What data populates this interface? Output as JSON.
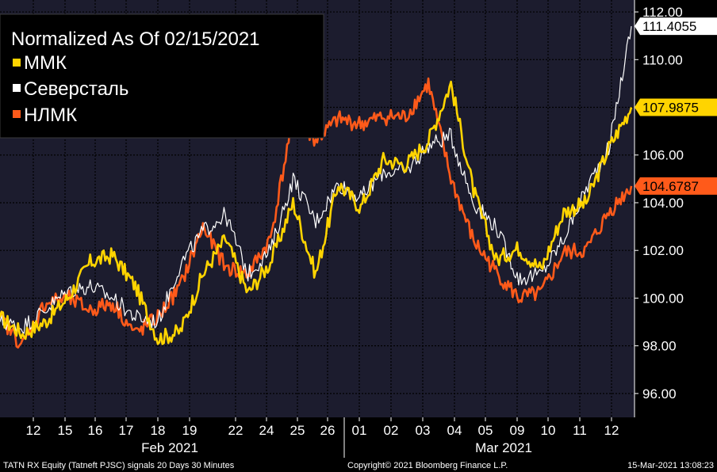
{
  "chart_data": {
    "type": "line",
    "title": "Normalized As Of 02/15/2021",
    "ylim": [
      95.0,
      112.5
    ],
    "yticks": [
      96.0,
      98.0,
      100.0,
      102.0,
      104.0,
      106.0,
      108.0,
      110.0,
      112.0
    ],
    "ytick_labels": [
      "96.00",
      "98.00",
      "100.00",
      "102.00",
      "104.00",
      "106.00",
      "108.00",
      "110.00",
      "112.00"
    ],
    "x_day_labels": [
      "12",
      "15",
      "16",
      "17",
      "18",
      "19",
      "22",
      "24",
      "25",
      "26",
      "01",
      "02",
      "03",
      "04",
      "05",
      "09",
      "10",
      "11",
      "12"
    ],
    "x_month_labels": [
      "Feb 2021",
      "Mar 2021"
    ],
    "grid": true,
    "legend_position": "top-left",
    "series": [
      {
        "name": "ММК",
        "color": "#ffd400",
        "last_value_label": "107.9875",
        "values": [
          99.2,
          98.5,
          99.0,
          100.0,
          101.5,
          101.8,
          100.5,
          98.3,
          98.6,
          101.0,
          102.5,
          100.2,
          101.5,
          104.0,
          101.0,
          104.8,
          103.8,
          105.8,
          105.6,
          106.6,
          109.0,
          104.5,
          101.6,
          102.1,
          101.2,
          103.6,
          104.0,
          106.3,
          108.0
        ]
      },
      {
        "name": "Северсталь",
        "color": "#ffffff",
        "last_value_label": "111.4055",
        "values": [
          99.0,
          98.8,
          99.5,
          100.3,
          100.5,
          100.0,
          99.2,
          99.0,
          101.4,
          102.8,
          103.5,
          101.0,
          102.0,
          105.0,
          103.2,
          104.8,
          104.2,
          105.3,
          105.3,
          106.4,
          106.8,
          104.0,
          103.0,
          100.8,
          101.0,
          102.5,
          104.6,
          106.3,
          111.4
        ]
      },
      {
        "name": "НЛМК",
        "color": "#ff5a1a",
        "last_value_label": "104.6787",
        "values": [
          99.2,
          98.0,
          99.8,
          100.0,
          99.5,
          99.8,
          98.5,
          99.2,
          100.5,
          103.0,
          101.3,
          101.0,
          102.5,
          107.6,
          106.6,
          107.5,
          107.3,
          107.6,
          107.6,
          109.0,
          105.0,
          102.4,
          101.1,
          100.0,
          100.2,
          101.9,
          102.0,
          103.6,
          104.7
        ]
      }
    ]
  },
  "footer": {
    "left": "TATN RX Equity (Tatneft PJSC) signals 20 Days 30 Minutes",
    "center": "Copyright© 2021 Bloomberg Finance L.P.",
    "right": "15-Mar-2021 13:08:23"
  },
  "colors": {
    "plot_bg": "#1c1c2e",
    "grid": "#000000",
    "axis_bg": "#000000"
  }
}
